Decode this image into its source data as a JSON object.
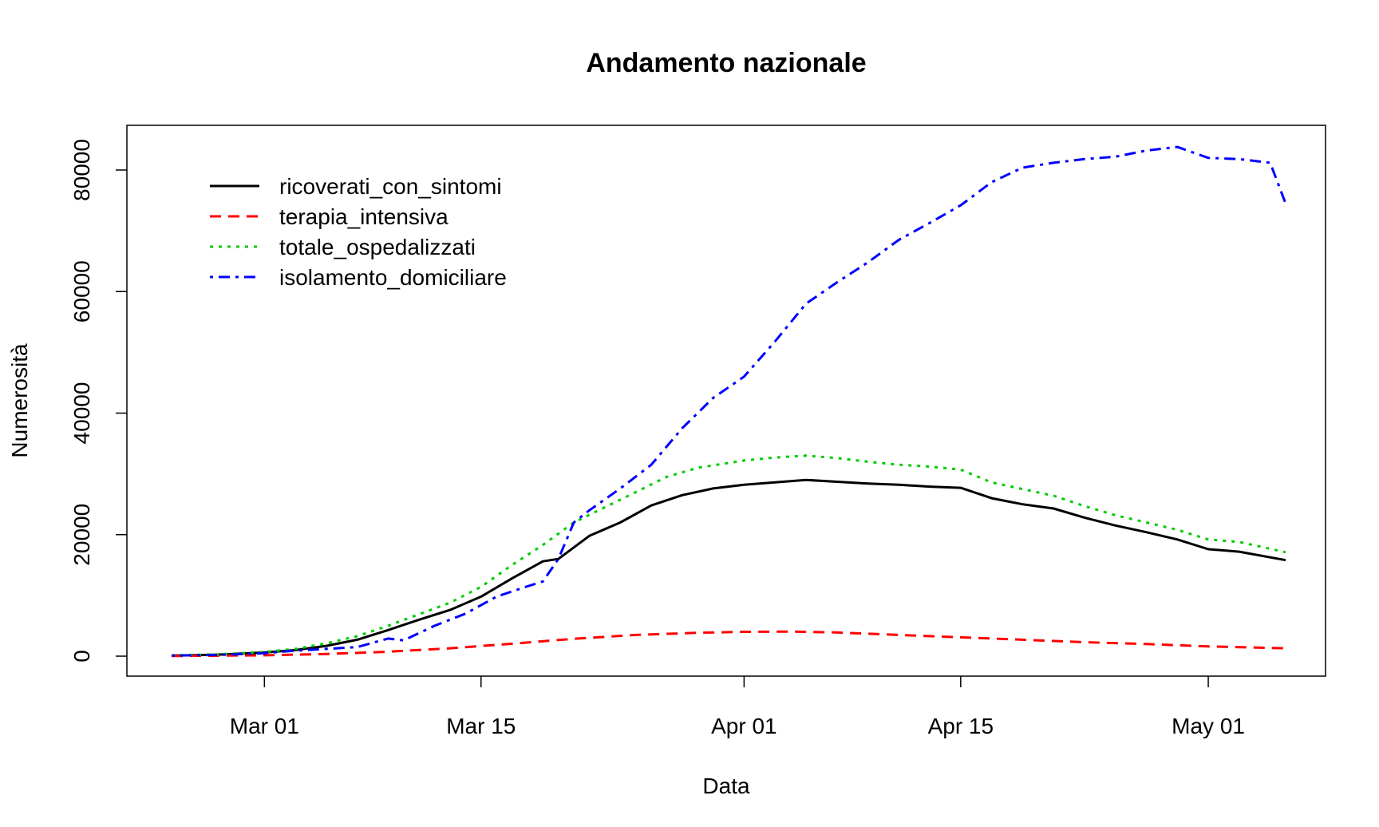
{
  "chart_data": {
    "type": "line",
    "title": "Andamento nazionale",
    "xlabel": "Data",
    "ylabel": "Numerosità",
    "xlim": [
      "2020-02-24",
      "2020-05-06"
    ],
    "ylim": [
      0,
      85000
    ],
    "x_ticks": [
      "2020-03-01",
      "2020-03-15",
      "2020-04-01",
      "2020-04-15",
      "2020-05-01"
    ],
    "x_tick_labels": [
      "Mar 01",
      "Mar 15",
      "Apr 01",
      "Apr 15",
      "May 01"
    ],
    "y_ticks": [
      0,
      20000,
      40000,
      60000,
      80000
    ],
    "y_tick_labels": [
      "0",
      "20000",
      "40000",
      "60000",
      "80000"
    ],
    "grid": false,
    "legend_position": "top-left",
    "series": [
      {
        "name": "ricoverati_con_sintomi",
        "color": "#000000",
        "dash": "solid",
        "x": [
          "2020-02-24",
          "2020-02-27",
          "2020-03-01",
          "2020-03-03",
          "2020-03-05",
          "2020-03-07",
          "2020-03-09",
          "2020-03-11",
          "2020-03-13",
          "2020-03-15",
          "2020-03-17",
          "2020-03-19",
          "2020-03-20",
          "2020-03-22",
          "2020-03-24",
          "2020-03-26",
          "2020-03-28",
          "2020-03-30",
          "2020-04-01",
          "2020-04-03",
          "2020-04-05",
          "2020-04-07",
          "2020-04-09",
          "2020-04-11",
          "2020-04-13",
          "2020-04-15",
          "2020-04-17",
          "2020-04-19",
          "2020-04-21",
          "2020-04-23",
          "2020-04-25",
          "2020-04-27",
          "2020-04-29",
          "2020-05-01",
          "2020-05-03",
          "2020-05-06"
        ],
        "values": [
          100,
          250,
          600,
          1000,
          1700,
          2700,
          4300,
          6000,
          7600,
          9800,
          12800,
          15600,
          16000,
          19800,
          22000,
          24800,
          26500,
          27600,
          28200,
          28600,
          29000,
          28700,
          28400,
          28200,
          27900,
          27700,
          26000,
          25000,
          24300,
          22800,
          21500,
          20400,
          19200,
          17600,
          17200,
          15800
        ]
      },
      {
        "name": "terapia_intensiva",
        "color": "#ff0000",
        "dash": "dashed",
        "x": [
          "2020-02-24",
          "2020-03-01",
          "2020-03-05",
          "2020-03-09",
          "2020-03-13",
          "2020-03-17",
          "2020-03-21",
          "2020-03-25",
          "2020-03-29",
          "2020-04-01",
          "2020-04-04",
          "2020-04-07",
          "2020-04-11",
          "2020-04-15",
          "2020-04-19",
          "2020-04-23",
          "2020-04-27",
          "2020-05-01",
          "2020-05-06"
        ],
        "values": [
          30,
          140,
          350,
          730,
          1300,
          2050,
          2860,
          3500,
          3850,
          4000,
          4050,
          3900,
          3500,
          3100,
          2700,
          2300,
          2000,
          1600,
          1300
        ]
      },
      {
        "name": "totale_ospedalizzati",
        "color": "#00cc00",
        "dash": "dotted",
        "x": [
          "2020-02-24",
          "2020-02-27",
          "2020-03-01",
          "2020-03-03",
          "2020-03-05",
          "2020-03-07",
          "2020-03-09",
          "2020-03-11",
          "2020-03-13",
          "2020-03-15",
          "2020-03-17",
          "2020-03-19",
          "2020-03-21",
          "2020-03-23",
          "2020-03-25",
          "2020-03-27",
          "2020-03-29",
          "2020-04-01",
          "2020-04-03",
          "2020-04-05",
          "2020-04-07",
          "2020-04-09",
          "2020-04-11",
          "2020-04-13",
          "2020-04-15",
          "2020-04-17",
          "2020-04-19",
          "2020-04-21",
          "2020-04-23",
          "2020-04-25",
          "2020-04-27",
          "2020-04-29",
          "2020-05-01",
          "2020-05-03",
          "2020-05-06"
        ],
        "values": [
          130,
          300,
          700,
          1200,
          2100,
          3300,
          5000,
          6900,
          8800,
          11400,
          15000,
          18300,
          22000,
          24500,
          27000,
          29500,
          31000,
          32200,
          32700,
          33000,
          32600,
          32000,
          31500,
          31200,
          30700,
          28600,
          27500,
          26400,
          24700,
          23200,
          22000,
          20800,
          19200,
          18800,
          17100
        ]
      },
      {
        "name": "isolamento_domiciliare",
        "color": "#0000ff",
        "dash": "dotdash",
        "x": [
          "2020-02-24",
          "2020-02-27",
          "2020-03-01",
          "2020-03-03",
          "2020-03-05",
          "2020-03-07",
          "2020-03-09",
          "2020-03-10",
          "2020-03-12",
          "2020-03-14",
          "2020-03-16",
          "2020-03-18",
          "2020-03-19",
          "2020-03-20",
          "2020-03-21",
          "2020-03-22",
          "2020-03-24",
          "2020-03-26",
          "2020-03-28",
          "2020-03-30",
          "2020-04-01",
          "2020-04-03",
          "2020-04-05",
          "2020-04-07",
          "2020-04-09",
          "2020-04-11",
          "2020-04-13",
          "2020-04-15",
          "2020-04-17",
          "2020-04-19",
          "2020-04-21",
          "2020-04-23",
          "2020-04-25",
          "2020-04-27",
          "2020-04-29",
          "2020-05-01",
          "2020-05-03",
          "2020-05-05",
          "2020-05-06"
        ],
        "values": [
          100,
          200,
          500,
          900,
          1200,
          1500,
          2900,
          2600,
          5000,
          7000,
          9800,
          11500,
          12300,
          16000,
          22000,
          24000,
          27600,
          31500,
          37500,
          42500,
          46000,
          51800,
          58000,
          61500,
          64800,
          68500,
          71300,
          74200,
          78000,
          80400,
          81200,
          81800,
          82200,
          83200,
          83800,
          82000,
          81800,
          81200,
          74500
        ]
      }
    ]
  }
}
